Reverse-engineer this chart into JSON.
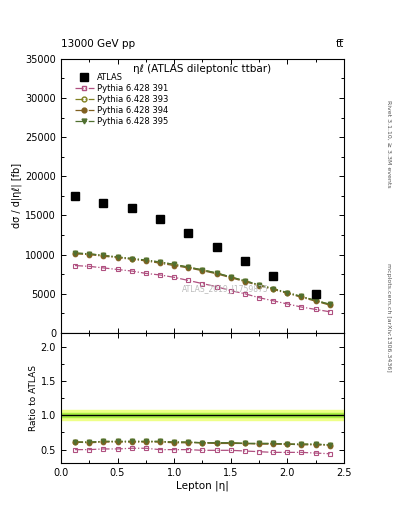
{
  "title_top": "13000 GeV pp",
  "title_top_right": "tt̅",
  "panel_title": "ηℓ (ATLAS dileptonic ttbar)",
  "watermark": "ATLAS_2019_I1759875",
  "ylabel_main": "dσ / d|ηℓ| [fb]",
  "ylabel_ratio": "Ratio to ATLAS",
  "xlabel": "Lepton |η|",
  "right_label_top": "Rivet 3.1.10, ≥ 3.3M events",
  "right_label_bottom": "mcplots.cern.ch [arXiv:1306.3436]",
  "atlas_x_sparse": [
    0.125,
    0.375,
    0.625,
    0.875,
    1.125,
    1.375,
    1.625,
    1.875,
    2.25
  ],
  "atlas_y": [
    17500,
    16600,
    15900,
    14600,
    12750,
    11000,
    9200,
    7300,
    5000
  ],
  "py_x": [
    0.125,
    0.25,
    0.375,
    0.5,
    0.625,
    0.75,
    0.875,
    1.0,
    1.125,
    1.25,
    1.375,
    1.5,
    1.625,
    1.75,
    1.875,
    2.0,
    2.125,
    2.25,
    2.375
  ],
  "py391_y": [
    8600,
    8500,
    8300,
    8100,
    7900,
    7600,
    7400,
    7100,
    6700,
    6300,
    5900,
    5400,
    5000,
    4500,
    4100,
    3700,
    3300,
    3000,
    2700
  ],
  "py393_y": [
    10200,
    10100,
    9900,
    9700,
    9500,
    9300,
    9050,
    8750,
    8400,
    8050,
    7650,
    7150,
    6650,
    6150,
    5650,
    5150,
    4650,
    4150,
    3650
  ],
  "py394_y": [
    10100,
    10000,
    9800,
    9600,
    9400,
    9200,
    8900,
    8600,
    8300,
    7950,
    7550,
    7050,
    6550,
    6050,
    5550,
    5050,
    4550,
    4050,
    3550
  ],
  "py395_y": [
    10200,
    10100,
    9900,
    9700,
    9500,
    9300,
    9050,
    8750,
    8400,
    8050,
    7650,
    7150,
    6650,
    6150,
    5650,
    5150,
    4650,
    4150,
    3650
  ],
  "ratio391": [
    0.5,
    0.5,
    0.51,
    0.51,
    0.52,
    0.52,
    0.5,
    0.5,
    0.5,
    0.49,
    0.49,
    0.49,
    0.48,
    0.47,
    0.46,
    0.46,
    0.46,
    0.45,
    0.44
  ],
  "ratio393": [
    0.61,
    0.61,
    0.62,
    0.62,
    0.62,
    0.62,
    0.62,
    0.61,
    0.61,
    0.6,
    0.6,
    0.6,
    0.59,
    0.59,
    0.59,
    0.58,
    0.58,
    0.58,
    0.57
  ],
  "ratio394": [
    0.61,
    0.6,
    0.61,
    0.61,
    0.61,
    0.61,
    0.61,
    0.6,
    0.6,
    0.6,
    0.59,
    0.59,
    0.59,
    0.58,
    0.58,
    0.58,
    0.57,
    0.57,
    0.56
  ],
  "ratio395": [
    0.61,
    0.61,
    0.62,
    0.62,
    0.62,
    0.62,
    0.62,
    0.61,
    0.61,
    0.6,
    0.6,
    0.6,
    0.59,
    0.59,
    0.59,
    0.58,
    0.58,
    0.58,
    0.57
  ],
  "color391": "#b05080",
  "color393": "#808020",
  "color394": "#806020",
  "color395": "#507030",
  "atlas_color": "#000000",
  "band_green": "#aaee44",
  "band_yellow": "#eeff88",
  "xlim": [
    0.0,
    2.5
  ],
  "ylim_main": [
    0,
    35000
  ],
  "ylim_ratio": [
    0.3,
    2.2
  ],
  "yticks_main": [
    0,
    5000,
    10000,
    15000,
    20000,
    25000,
    30000,
    35000
  ],
  "yticks_ratio": [
    0.5,
    1.0,
    1.5,
    2.0
  ],
  "legend_labels": [
    "ATLAS",
    "Pythia 6.428 391",
    "Pythia 6.428 393",
    "Pythia 6.428 394",
    "Pythia 6.428 395"
  ]
}
